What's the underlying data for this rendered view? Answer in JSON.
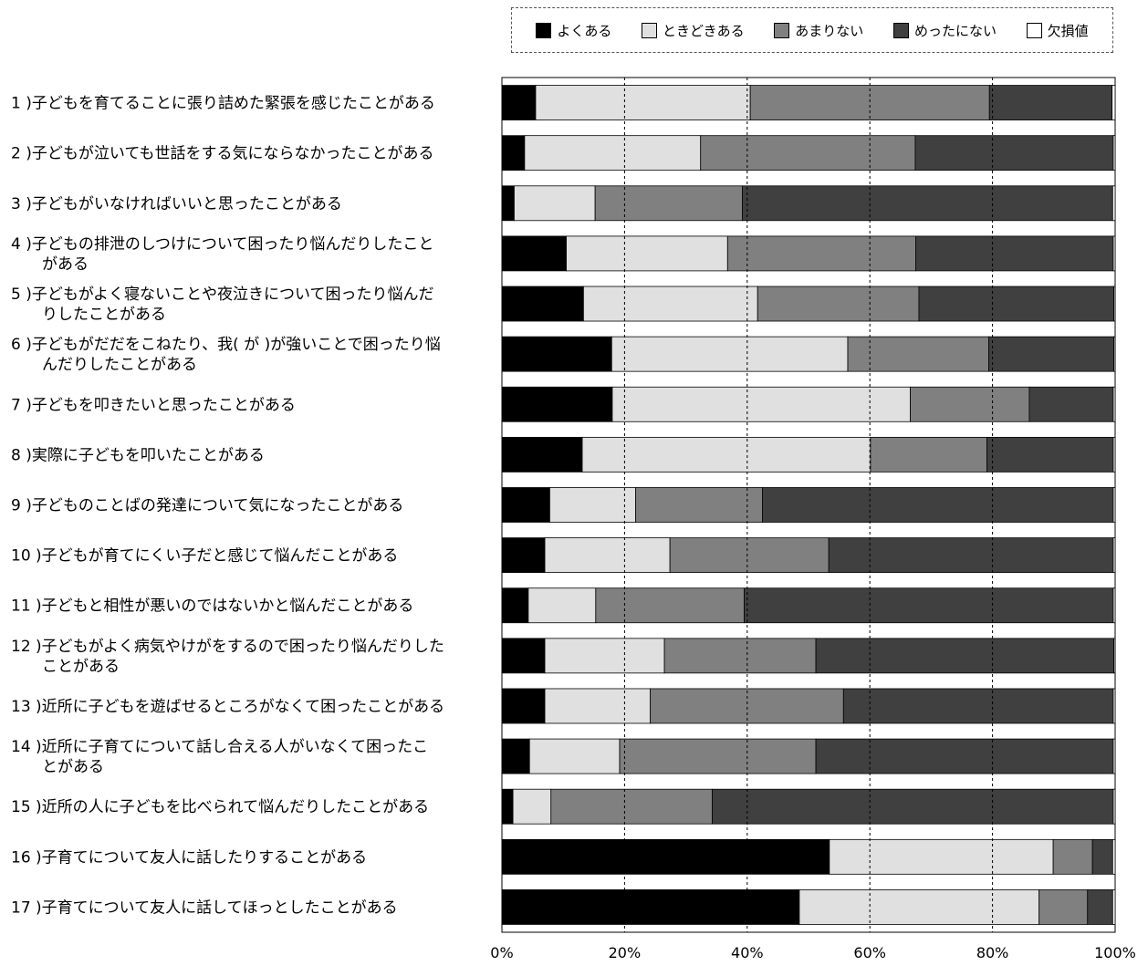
{
  "chart_data": {
    "type": "bar",
    "orientation": "horizontal",
    "stacked": "percent",
    "categories": [
      [
        "1 )子どもを育てることに張り詰めた緊張を感じたことがある"
      ],
      [
        "2 )子どもが泣いても世話をする気にならなかったことがある"
      ],
      [
        "3 )子どもがいなければいいと思ったことがある"
      ],
      [
        "4 )子どもの排泄のしつけについて困ったり悩んだりしたこと",
        "がある"
      ],
      [
        "5 )子どもがよく寝ないことや夜泣きについて困ったり悩んだ",
        "りしたことがある"
      ],
      [
        "6 )子どもがだだをこねたり、我( が )が強いことで困ったり悩",
        "んだりしたことがある"
      ],
      [
        "7 )子どもを叩きたいと思ったことがある"
      ],
      [
        "8 )実際に子どもを叩いたことがある"
      ],
      [
        "9 )子どものことばの発達について気になったことがある"
      ],
      [
        "10 )子どもが育てにくい子だと感じて悩んだことがある"
      ],
      [
        "11 )子どもと相性が悪いのではないかと悩んだことがある"
      ],
      [
        "12 )子どもがよく病気やけがをするので困ったり悩んだりした",
        "ことがある"
      ],
      [
        "13 )近所に子どもを遊ばせるところがなくて困ったことがある"
      ],
      [
        "14 )近所に子育てについて話し合える人がいなくて困ったこ",
        "とがある"
      ],
      [
        "15 )近所の人に子どもを比べられて悩んだりしたことがある"
      ],
      [
        "16 )子育てについて友人に話したりすることがある"
      ],
      [
        "17 )子育てについて友人に話してほっとしたことがある"
      ]
    ],
    "series": [
      {
        "name": "よくある",
        "color": "#000000",
        "values": [
          5.5,
          3.7,
          2.0,
          10.5,
          13.3,
          17.9,
          18.0,
          13.1,
          7.8,
          7.0,
          4.3,
          7.0,
          7.0,
          4.5,
          1.8,
          53.4,
          48.5
        ]
      },
      {
        "name": "ときどきある",
        "color": "#e0e0e0",
        "values": [
          35.0,
          28.7,
          13.2,
          26.3,
          28.4,
          38.5,
          48.6,
          47.0,
          14.0,
          20.4,
          11.0,
          19.5,
          17.2,
          14.7,
          6.2,
          36.5,
          39.1
        ]
      },
      {
        "name": "あまりない",
        "color": "#808080",
        "values": [
          39.0,
          35.0,
          24.0,
          30.7,
          26.3,
          23.0,
          19.4,
          19.0,
          20.7,
          25.9,
          24.2,
          24.7,
          31.5,
          32.0,
          26.3,
          6.4,
          7.9
        ]
      },
      {
        "name": "めったにない",
        "color": "#404040",
        "values": [
          20.0,
          32.3,
          60.4,
          32.2,
          31.8,
          20.4,
          13.7,
          20.6,
          57.2,
          46.4,
          60.2,
          48.6,
          44.0,
          48.5,
          65.4,
          3.3,
          4.1
        ]
      },
      {
        "name": "欠損値",
        "color": "#ffffff",
        "values": [
          0.5,
          0.3,
          0.4,
          0.3,
          0.2,
          0.2,
          0.3,
          0.3,
          0.3,
          0.3,
          0.3,
          0.2,
          0.3,
          0.3,
          0.3,
          0.4,
          0.4
        ]
      }
    ],
    "x_ticks": [
      "0%",
      "20%",
      "40%",
      "60%",
      "80%",
      "100%"
    ],
    "xlim": [
      0,
      100
    ],
    "grid": "vertical dashed",
    "legend": "top-right, dashed box"
  }
}
